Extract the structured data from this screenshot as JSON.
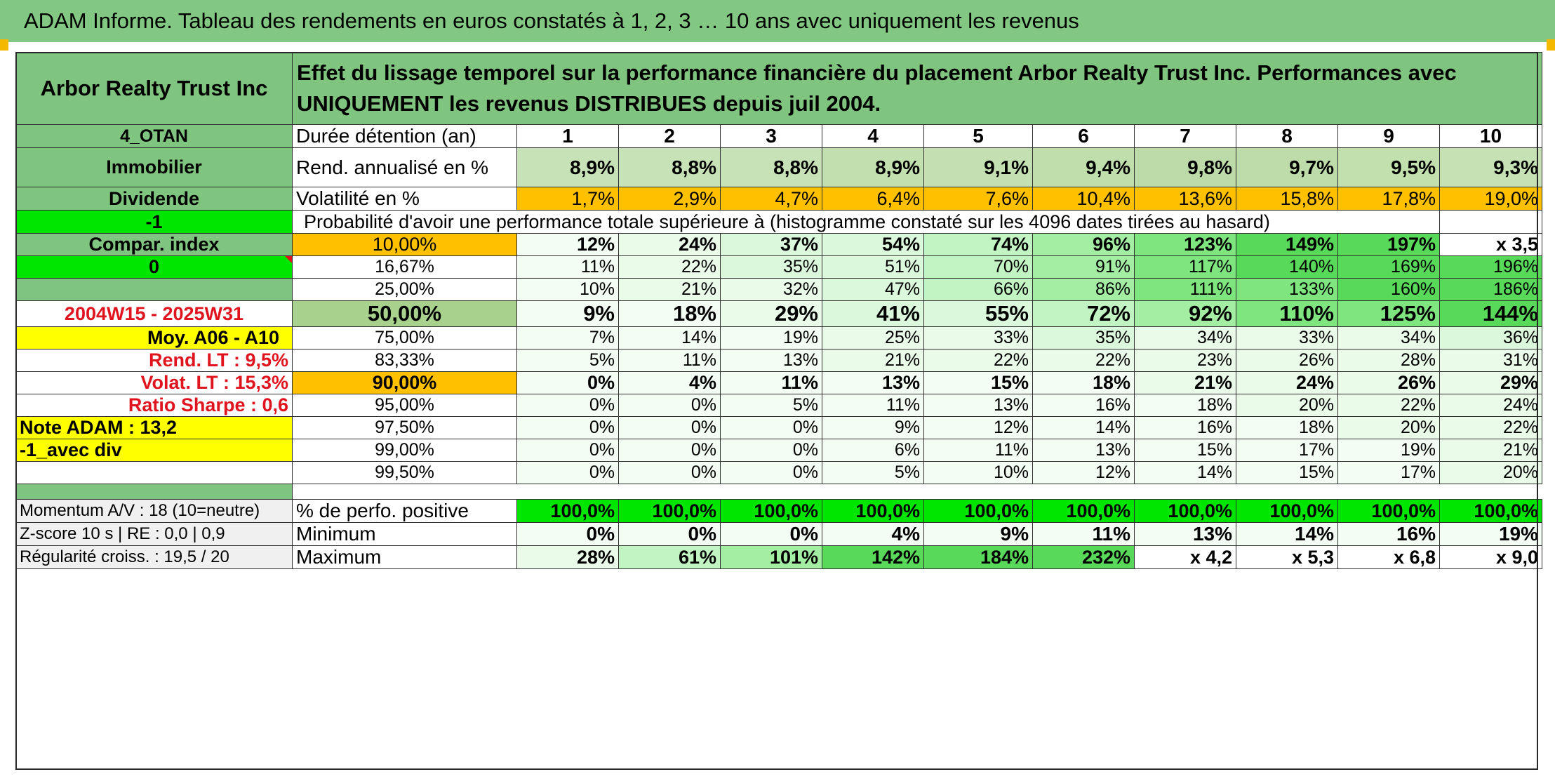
{
  "title": "ADAM Informe. Tableau des rendements en euros constatés à 1, 2, 3 … 10 ans avec uniquement les revenus",
  "colors": {
    "title_bg": "#82c882",
    "label_bg": "#7fc47f",
    "orange": "#ffc000",
    "yellow": "#ffff00",
    "bright_green": "#00e600",
    "red_text": "#e0141e"
  },
  "header": {
    "asset_name": "Arbor Realty Trust Inc",
    "description": "Effet du lissage temporel sur la performance financière du placement Arbor Realty Trust Inc. Performances avec UNIQUEMENT les revenus DISTRIBUES depuis juil 2004."
  },
  "side": {
    "code": "4_OTAN",
    "sector": "Immobilier",
    "income_type": "Dividende",
    "flag1": "-1",
    "compare": "Compar. index",
    "flag2": "0",
    "period": "2004W15 - 2025W31",
    "avg": "Moy. A06 - A10",
    "rend_lt": "Rend. LT :   9,5%",
    "volat_lt": "Volat. LT :   15,3%",
    "sharpe": "Ratio Sharpe :    0,6",
    "note": "Note ADAM : 13,2",
    "variant": "-1_avec div"
  },
  "durations": {
    "label": "Durée détention (an)",
    "years": [
      "1",
      "2",
      "3",
      "4",
      "5",
      "6",
      "7",
      "8",
      "9",
      "10"
    ]
  },
  "returns": {
    "label": "Rend. annualisé en %",
    "values": [
      "8,9%",
      "8,8%",
      "8,8%",
      "8,9%",
      "9,1%",
      "9,4%",
      "9,8%",
      "9,7%",
      "9,5%",
      "9,3%"
    ]
  },
  "volatility": {
    "label": "Volatilité en %",
    "values": [
      "1,7%",
      "2,9%",
      "4,7%",
      "6,4%",
      "7,6%",
      "10,4%",
      "13,6%",
      "15,8%",
      "17,8%",
      "19,0%"
    ]
  },
  "probability_caption": "Probabilité d'avoir une performance totale supérieure à (histogramme constaté sur les 4096 dates tirées au hasard)",
  "probability_rows": [
    {
      "pct": "10,00%",
      "values": [
        "12%",
        "24%",
        "37%",
        "54%",
        "74%",
        "96%",
        "123%",
        "149%",
        "197%",
        "x 3,5"
      ]
    },
    {
      "pct": "16,67%",
      "values": [
        "11%",
        "22%",
        "35%",
        "51%",
        "70%",
        "91%",
        "117%",
        "140%",
        "169%",
        "196%"
      ]
    },
    {
      "pct": "25,00%",
      "values": [
        "10%",
        "21%",
        "32%",
        "47%",
        "66%",
        "86%",
        "111%",
        "133%",
        "160%",
        "186%"
      ]
    },
    {
      "pct": "50,00%",
      "values": [
        "9%",
        "18%",
        "29%",
        "41%",
        "55%",
        "72%",
        "92%",
        "110%",
        "125%",
        "144%"
      ]
    },
    {
      "pct": "75,00%",
      "values": [
        "7%",
        "14%",
        "19%",
        "25%",
        "33%",
        "35%",
        "34%",
        "33%",
        "34%",
        "36%"
      ]
    },
    {
      "pct": "83,33%",
      "values": [
        "5%",
        "11%",
        "13%",
        "21%",
        "22%",
        "22%",
        "23%",
        "26%",
        "28%",
        "31%"
      ]
    },
    {
      "pct": "90,00%",
      "values": [
        "0%",
        "4%",
        "11%",
        "13%",
        "15%",
        "18%",
        "21%",
        "24%",
        "26%",
        "29%"
      ]
    },
    {
      "pct": "95,00%",
      "values": [
        "0%",
        "0%",
        "5%",
        "11%",
        "13%",
        "16%",
        "18%",
        "20%",
        "22%",
        "24%"
      ]
    },
    {
      "pct": "97,50%",
      "values": [
        "0%",
        "0%",
        "0%",
        "9%",
        "12%",
        "14%",
        "16%",
        "18%",
        "20%",
        "22%"
      ]
    },
    {
      "pct": "99,00%",
      "values": [
        "0%",
        "0%",
        "0%",
        "6%",
        "11%",
        "13%",
        "15%",
        "17%",
        "19%",
        "21%"
      ]
    },
    {
      "pct": "99,50%",
      "values": [
        "0%",
        "0%",
        "0%",
        "5%",
        "10%",
        "12%",
        "14%",
        "15%",
        "17%",
        "20%"
      ]
    }
  ],
  "footer": [
    {
      "side": "Momentum A/V : 18 (10=neutre)",
      "label": "% de perfo. positive",
      "values": [
        "100,0%",
        "100,0%",
        "100,0%",
        "100,0%",
        "100,0%",
        "100,0%",
        "100,0%",
        "100,0%",
        "100,0%",
        "100,0%"
      ]
    },
    {
      "side": "Z-score 10 s | RE : 0,0 | 0,9",
      "label": "Minimum",
      "values": [
        "0%",
        "0%",
        "0%",
        "4%",
        "9%",
        "11%",
        "13%",
        "14%",
        "16%",
        "19%"
      ]
    },
    {
      "side": "Régularité croiss. : 19,5 / 20",
      "label": "Maximum",
      "values": [
        "28%",
        "61%",
        "101%",
        "142%",
        "184%",
        "232%",
        "x 4,2",
        "x 5,3",
        "x 6,8",
        "x 9,0"
      ]
    }
  ]
}
